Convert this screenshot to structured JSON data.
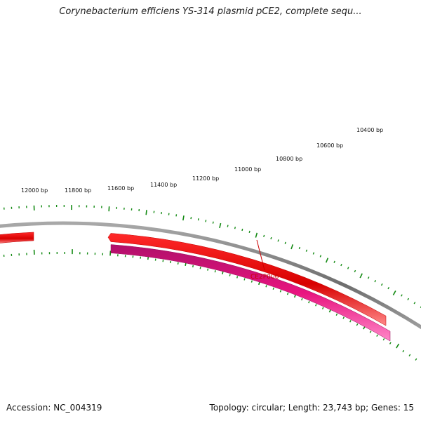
{
  "title": "Corynebacterium efficiens YS-314 plasmid pCE2, complete sequ...",
  "footer": {
    "accession": "Accession: NC_004319",
    "summary": "Topology: circular; Length: 23,743 bp; Genes: 15"
  },
  "map": {
    "tick_labels": [
      "12000 bp",
      "11800 bp",
      "11600 bp",
      "11400 bp",
      "11200 bp",
      "11000 bp",
      "10800 bp",
      "10600 bp",
      "10400 bp"
    ],
    "gene_label": "CE2P006",
    "colors": {
      "backbone": "#7f7f7f",
      "forward_gene": "#e80000",
      "reverse_gene": "#e8147f",
      "tick": "#138a13",
      "gene_label": "#cc0000"
    }
  }
}
